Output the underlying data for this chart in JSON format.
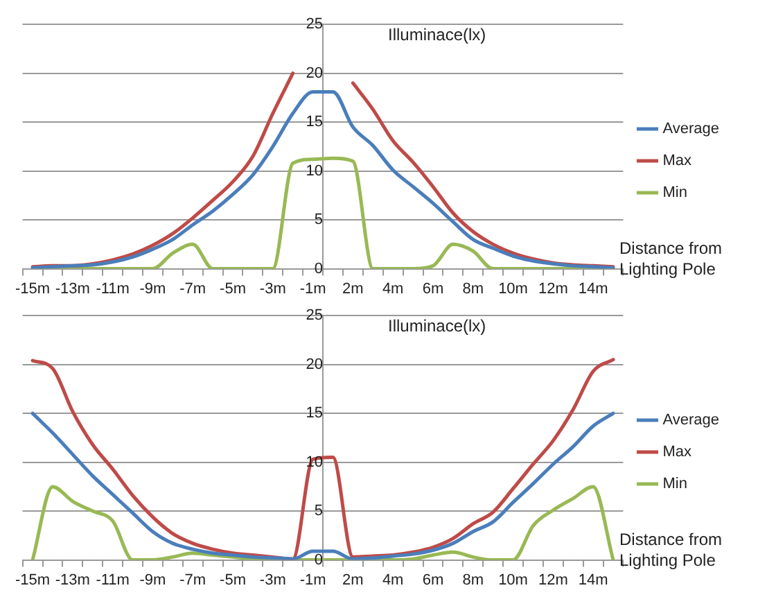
{
  "chart_data": [
    {
      "type": "line",
      "ylabel": "Illuminace(lx)",
      "xlabel": "Distance from Lighting Pole",
      "categories": [
        "-15m",
        null,
        "-13m",
        null,
        "-11m",
        null,
        "-9m",
        null,
        "-7m",
        null,
        "-5m",
        null,
        "-3m",
        null,
        "-1m",
        null,
        "2m",
        null,
        "4m",
        null,
        "6m",
        null,
        "8m",
        null,
        "10m",
        null,
        "12m",
        null,
        "14m",
        null
      ],
      "ylim": [
        0,
        25
      ],
      "yticks": [
        0,
        5,
        10,
        15,
        20,
        25
      ],
      "grid": "y",
      "legend": "right",
      "marker": "none",
      "line_style": "solid",
      "series": [
        {
          "name": "Average",
          "color": "#4a7ebb",
          "values": [
            0.1,
            0.2,
            0.3,
            0.4,
            0.7,
            1.2,
            2.0,
            3.0,
            4.5,
            5.9,
            7.6,
            9.6,
            12.5,
            15.9,
            18.1,
            18.1,
            14.5,
            12.6,
            10.1,
            8.4,
            6.7,
            4.8,
            3.0,
            2.1,
            1.3,
            0.8,
            0.5,
            0.3,
            0.2,
            0.1
          ]
        },
        {
          "name": "Max",
          "color": "#be4b48",
          "values": [
            0.2,
            0.3,
            0.3,
            0.5,
            0.9,
            1.5,
            2.4,
            3.6,
            5.2,
            7.0,
            8.9,
            11.5,
            15.9,
            20.0,
            null,
            null,
            19.0,
            16.3,
            13.1,
            10.9,
            8.4,
            5.7,
            3.8,
            2.5,
            1.6,
            1.0,
            0.6,
            0.4,
            0.3,
            0.2
          ]
        },
        {
          "name": "Min",
          "color": "#98b954",
          "values": [
            0,
            0,
            0,
            0,
            0,
            0,
            0,
            1.6,
            2.5,
            0,
            0,
            0,
            0,
            10.8,
            11.2,
            11.3,
            11.0,
            0,
            0,
            0,
            0.3,
            2.5,
            1.8,
            0,
            0,
            0,
            0,
            0,
            0,
            0
          ]
        }
      ]
    },
    {
      "type": "line",
      "ylabel": "Illuminace(lx)",
      "xlabel": "Distance from Lighting Pole",
      "categories": [
        "-15m",
        null,
        "-13m",
        null,
        "-11m",
        null,
        "-9m",
        null,
        "-7m",
        null,
        "-5m",
        null,
        "-3m",
        null,
        "-1m",
        null,
        "2m",
        null,
        "4m",
        null,
        "6m",
        null,
        "8m",
        null,
        "10m",
        null,
        "12m",
        null,
        "14m",
        null
      ],
      "ylim": [
        0,
        25
      ],
      "yticks": [
        0,
        5,
        10,
        15,
        20,
        25
      ],
      "grid": "y",
      "legend": "right",
      "marker": "none",
      "line_style": "solid",
      "series": [
        {
          "name": "Average",
          "color": "#4a7ebb",
          "values": [
            15.0,
            13.0,
            10.8,
            8.6,
            6.7,
            4.8,
            2.9,
            1.7,
            1.1,
            0.7,
            0.5,
            0.3,
            0.2,
            0.1,
            0.9,
            0.9,
            0.1,
            0.2,
            0.4,
            0.6,
            1.0,
            1.7,
            2.9,
            3.9,
            5.9,
            7.8,
            9.8,
            11.6,
            13.7,
            15.0
          ]
        },
        {
          "name": "Max",
          "color": "#be4b48",
          "values": [
            20.4,
            19.6,
            15.2,
            11.8,
            9.3,
            6.6,
            4.4,
            2.7,
            1.7,
            1.1,
            0.7,
            0.5,
            0.3,
            0.1,
            10.3,
            10.5,
            0.3,
            0.4,
            0.5,
            0.8,
            1.3,
            2.2,
            3.7,
            4.9,
            7.3,
            9.8,
            12.2,
            15.4,
            19.3,
            20.5
          ]
        },
        {
          "name": "Min",
          "color": "#98b954",
          "values": [
            0,
            7.5,
            6.0,
            5.0,
            4.0,
            0,
            0,
            0.3,
            0.7,
            0.5,
            0.3,
            0.1,
            0,
            0,
            0,
            0,
            0,
            0,
            0,
            0.1,
            0.5,
            0.8,
            0.3,
            0,
            0,
            3.5,
            5.1,
            6.3,
            7.5,
            0
          ]
        }
      ]
    }
  ]
}
